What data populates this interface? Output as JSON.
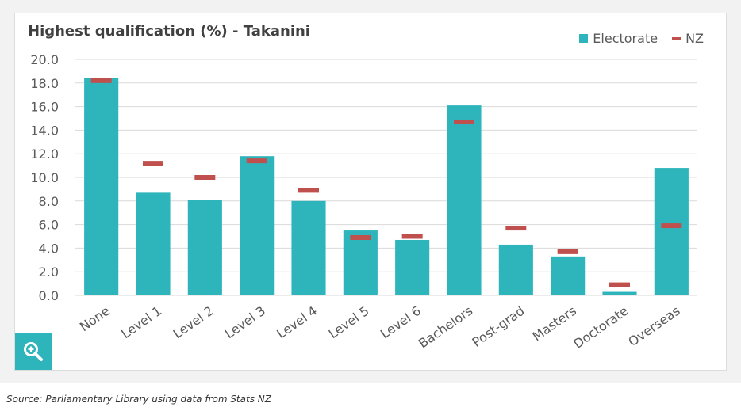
{
  "chart_data": {
    "type": "bar",
    "title": "Highest qualification (%) - Takanini",
    "categories": [
      "None",
      "Level 1",
      "Level 2",
      "Level 3",
      "Level 4",
      "Level 5",
      "Level 6",
      "Bachelors",
      "Post-grad",
      "Masters",
      "Doctorate",
      "Overseas"
    ],
    "series": [
      {
        "name": "Electorate",
        "kind": "bar",
        "color": "#2eb5bc",
        "values": [
          18.4,
          8.7,
          8.1,
          11.8,
          8.0,
          5.5,
          4.7,
          16.1,
          4.3,
          3.3,
          0.3,
          10.8
        ]
      },
      {
        "name": "NZ",
        "kind": "marker",
        "color": "#c0504d",
        "values": [
          18.2,
          11.2,
          10.0,
          11.4,
          8.9,
          4.9,
          5.0,
          14.7,
          5.7,
          3.7,
          0.9,
          5.9
        ]
      }
    ],
    "yticks": [
      "0.0",
      "2.0",
      "4.0",
      "6.0",
      "8.0",
      "10.0",
      "12.0",
      "14.0",
      "16.0",
      "18.0",
      "20.0"
    ],
    "ylim": [
      0,
      20
    ],
    "xlabel": "",
    "ylabel": "",
    "grid": true,
    "legend_position": "top-right"
  },
  "footer": {
    "source_text": "Source: Parliamentary Library using data from Stats NZ"
  },
  "zoom_icon": "zoom-in-icon",
  "colors": {
    "zoom_button": "#2eb5bc",
    "gridline": "#d9d9d9"
  }
}
